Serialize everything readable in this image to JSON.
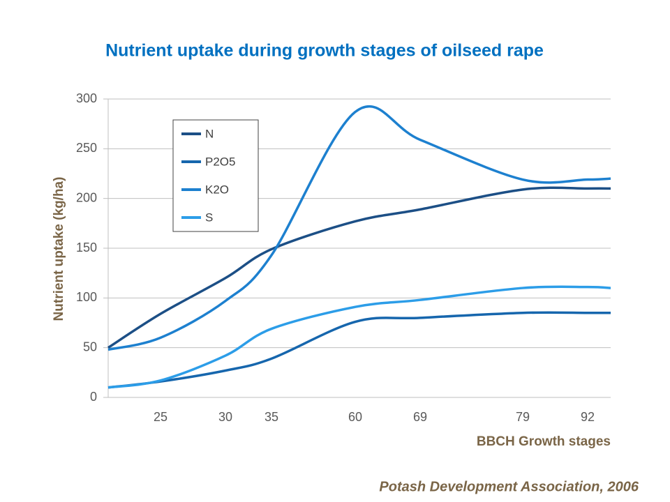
{
  "chart_data": {
    "type": "line",
    "title": "Nutrient uptake during growth stages of oilseed rape",
    "y_label": "Nutrient uptake (kg/ha)",
    "x_label": "BBCH Growth stages",
    "source": "Potash Development Association, 2006",
    "x": [
      0,
      2.5,
      5.6,
      7.8,
      11.8,
      14.9,
      19.8,
      22.9,
      24
    ],
    "xlim": [
      0,
      24
    ],
    "xticks": [
      {
        "value": 2.5,
        "label": "25"
      },
      {
        "value": 5.6,
        "label": "30"
      },
      {
        "value": 7.8,
        "label": "35"
      },
      {
        "value": 11.8,
        "label": "60"
      },
      {
        "value": 14.9,
        "label": "69"
      },
      {
        "value": 19.8,
        "label": "79"
      },
      {
        "value": 22.9,
        "label": "92"
      }
    ],
    "ylim": [
      0,
      300
    ],
    "yticks": [
      0,
      50,
      100,
      150,
      200,
      250,
      300
    ],
    "grid": true,
    "series": [
      {
        "name": "N",
        "color": "#1c4f86",
        "values": [
          50,
          84,
          120,
          149,
          177,
          189,
          209,
          210,
          210
        ]
      },
      {
        "name": "P2O5",
        "color": "#1666ad",
        "values": [
          10,
          16,
          27,
          39,
          76,
          80,
          85,
          85,
          85
        ]
      },
      {
        "name": "K2O",
        "color": "#1d80cf",
        "values": [
          48,
          60,
          97,
          143,
          287,
          259,
          219,
          219,
          220
        ]
      },
      {
        "name": "S",
        "color": "#2c9de8",
        "values": [
          10,
          17,
          42,
          69,
          91,
          98,
          110,
          111,
          110
        ]
      }
    ]
  }
}
